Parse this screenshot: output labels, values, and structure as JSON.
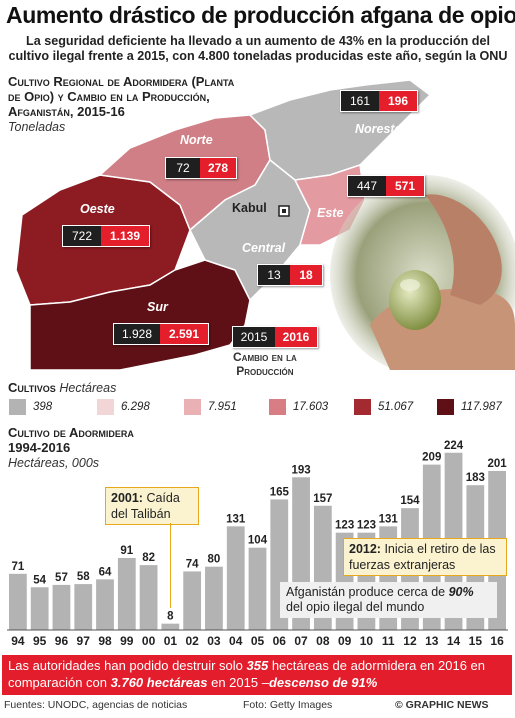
{
  "header": {
    "title": "Aumento drástico de producción afgana de opio",
    "subtitle": "La seguridad deficiente ha llevado a un aumento de 43% en la producción del cultivo ilegal frente a 2015, con 4.800 toneladas producidas este año, según la ONU"
  },
  "map_section": {
    "title_line1": "Cultivo Regional de Adormidera (Planta",
    "title_line2": "de Opio) y Cambio en la Producción,",
    "title_line3": "Afganistán, 2015-16",
    "units": "Toneladas",
    "capital": "Kabul",
    "regions": [
      {
        "name": "Norte",
        "v2015": "72",
        "v2016": "278",
        "color": "#cf7f85"
      },
      {
        "name": "Noreste",
        "v2015": "161",
        "v2016": "196",
        "color": "#b8b8b8"
      },
      {
        "name": "Este",
        "v2015": "447",
        "v2016": "571",
        "color": "#e39aa0"
      },
      {
        "name": "Oeste",
        "v2015": "722",
        "v2016": "1.139",
        "color": "#8c1c22"
      },
      {
        "name": "Central",
        "v2015": "13",
        "v2016": "18",
        "color": "#b8b8b8"
      },
      {
        "name": "Sur",
        "v2015": "1.928",
        "v2016": "2.591",
        "color": "#5e1016"
      }
    ],
    "key_badge": {
      "old": "2015",
      "new": "2016"
    },
    "key_label_line1": "Cambio en la",
    "key_label_line2": "Producción"
  },
  "legend": {
    "title": "Cultivos",
    "units": "Hectáreas",
    "items": [
      {
        "label": "398",
        "color": "#b3b3b3"
      },
      {
        "label": "6.298",
        "color": "#f2d6d7"
      },
      {
        "label": "7.951",
        "color": "#e9b1b4"
      },
      {
        "label": "17.603",
        "color": "#d87d84"
      },
      {
        "label": "51.067",
        "color": "#a42a31"
      },
      {
        "label": "117.987",
        "color": "#5e1016"
      }
    ]
  },
  "chart_section": {
    "title_line1": "Cultivo de Adormidera",
    "title_line2": "1994-2016",
    "units": "Hectáreas, 000s"
  },
  "chart_data": {
    "type": "bar",
    "title": "Cultivo de Adormidera 1994-2016",
    "ylabel": "Hectáreas, 000s",
    "categories": [
      "94",
      "95",
      "96",
      "97",
      "98",
      "99",
      "00",
      "01",
      "02",
      "03",
      "04",
      "05",
      "06",
      "07",
      "08",
      "09",
      "10",
      "11",
      "12",
      "13",
      "14",
      "15",
      "16"
    ],
    "values": [
      71,
      54,
      57,
      58,
      64,
      91,
      82,
      8,
      74,
      80,
      131,
      104,
      165,
      193,
      157,
      123,
      123,
      131,
      154,
      209,
      224,
      183,
      201
    ],
    "ylim": [
      0,
      230
    ],
    "bar_color": "#b3b3b3",
    "grid": false
  },
  "callouts": {
    "taliban_year": "2001:",
    "taliban_text": " Caída del Talibán",
    "withdrawal_year": "2012:",
    "withdrawal_text": " Inicia el retiro de las fuerzas extranjeras",
    "note_a": "Afganistán produce cerca de ",
    "note_pct": "90%",
    "note_b": " del opio ilegal del mundo"
  },
  "footer": {
    "text_a": "Las autoridades han podido destruir solo ",
    "num_a": "355",
    "text_b": " hectáreas de adormidera en 2016 en comparación con ",
    "num_b": "3.760 hectáreas",
    "text_c": " en 2015 –",
    "num_c": "descenso de 91%",
    "sources": "Fuentes: UNODC, agencias de noticias",
    "photo_credit": "Foto: Getty Images",
    "brand": "© GRAPHIC NEWS"
  }
}
